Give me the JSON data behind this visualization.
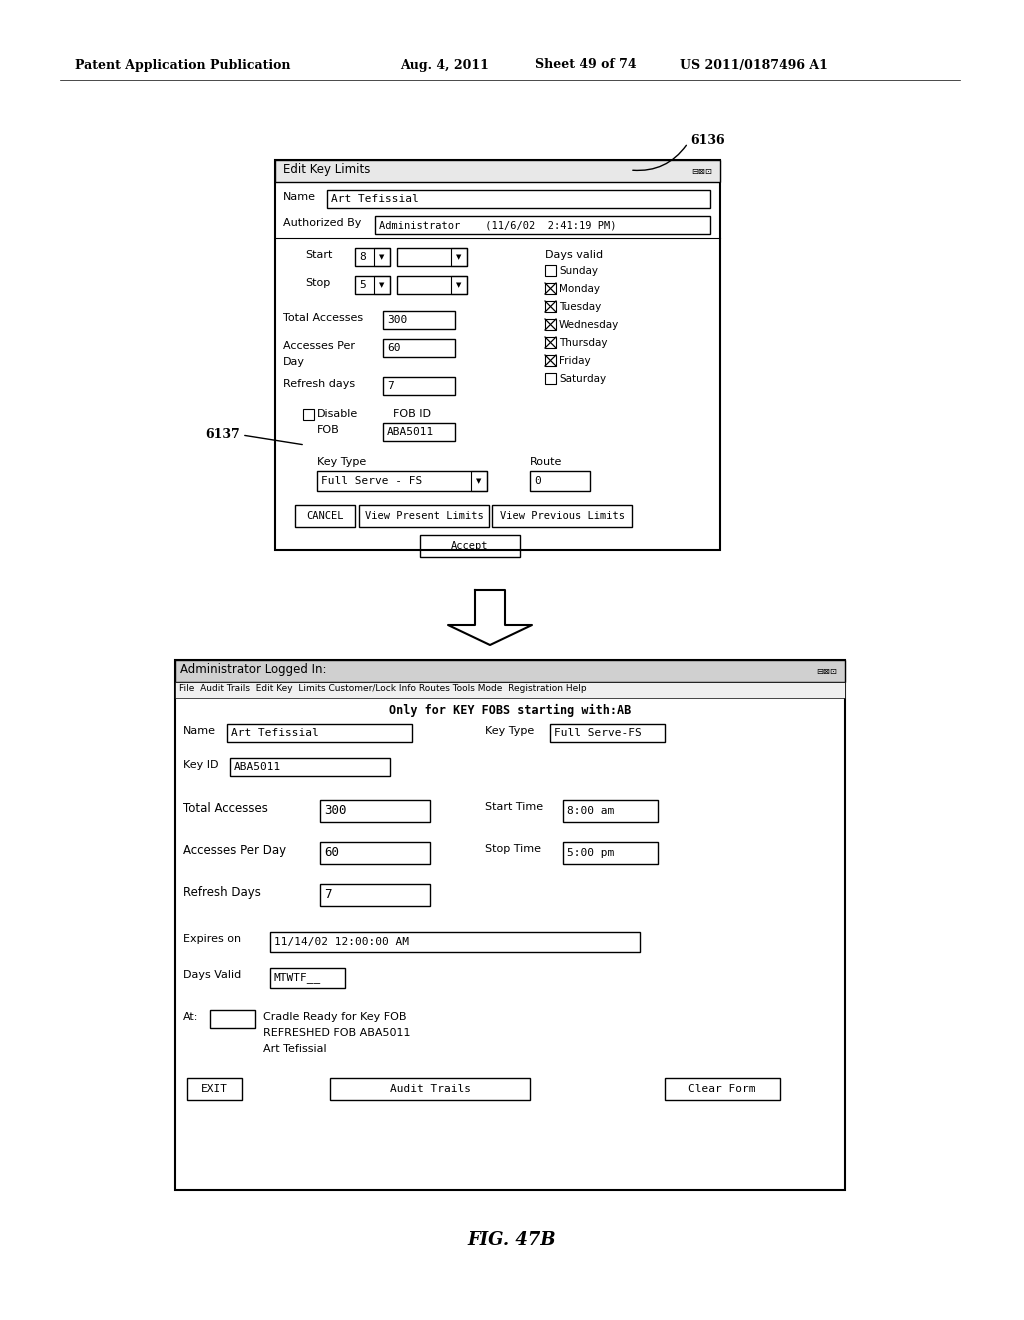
{
  "bg_color": "#ffffff",
  "header_text": "Patent Application Publication",
  "header_date": "Aug. 4, 2011",
  "header_sheet": "Sheet 49 of 74",
  "header_patent": "US 2011/0187496 A1",
  "fig_label": "FIG. 47B",
  "label_6136": "6136",
  "label_6137": "6137",
  "dialog1": {
    "title": "Edit Key Limits",
    "name_value": "Art Tefissial",
    "auth_value": "Administrator    (11/6/02  2:41:19 PM)",
    "start_val": "8",
    "stop_val": "5",
    "total_val": "300",
    "perday_val": "60",
    "refresh_val": "7",
    "fob_id_val": "ABA5011",
    "keytype_val": "Full Serve - FS",
    "route_val": "0",
    "days": [
      "Sunday",
      "Monday",
      "Tuesday",
      "Wednesday",
      "Thursday",
      "Friday",
      "Saturday"
    ],
    "days_checked": [
      false,
      true,
      true,
      true,
      true,
      true,
      false
    ]
  },
  "dialog2": {
    "title": "Administrator Logged In:",
    "menu": "File  Audit Trails  Edit Key  Limits Customer/Lock Info Routes Tools Mode  Registration Help",
    "subtitle": "Only for KEY FOBS starting with:AB",
    "name_val": "Art Tefissial",
    "keytype_val": "Full Serve-FS",
    "keyid_val": "ABA5011",
    "total_val": "300",
    "starttime_val": "8:00 am",
    "perday_val": "60",
    "stoptime_val": "5:00 pm",
    "refresh_val": "7",
    "expires_val": "11/14/02 12:00:00 AM",
    "daysvalid_val": "MTWTF__",
    "at_text1": "Cradle Ready for Key FOB",
    "at_text2": "REFRESHED FOB ABA5011",
    "at_text3": "Art Tefissial",
    "btn_exit": "EXIT",
    "btn_audit": "Audit Trails",
    "btn_clear": "Clear Form"
  }
}
